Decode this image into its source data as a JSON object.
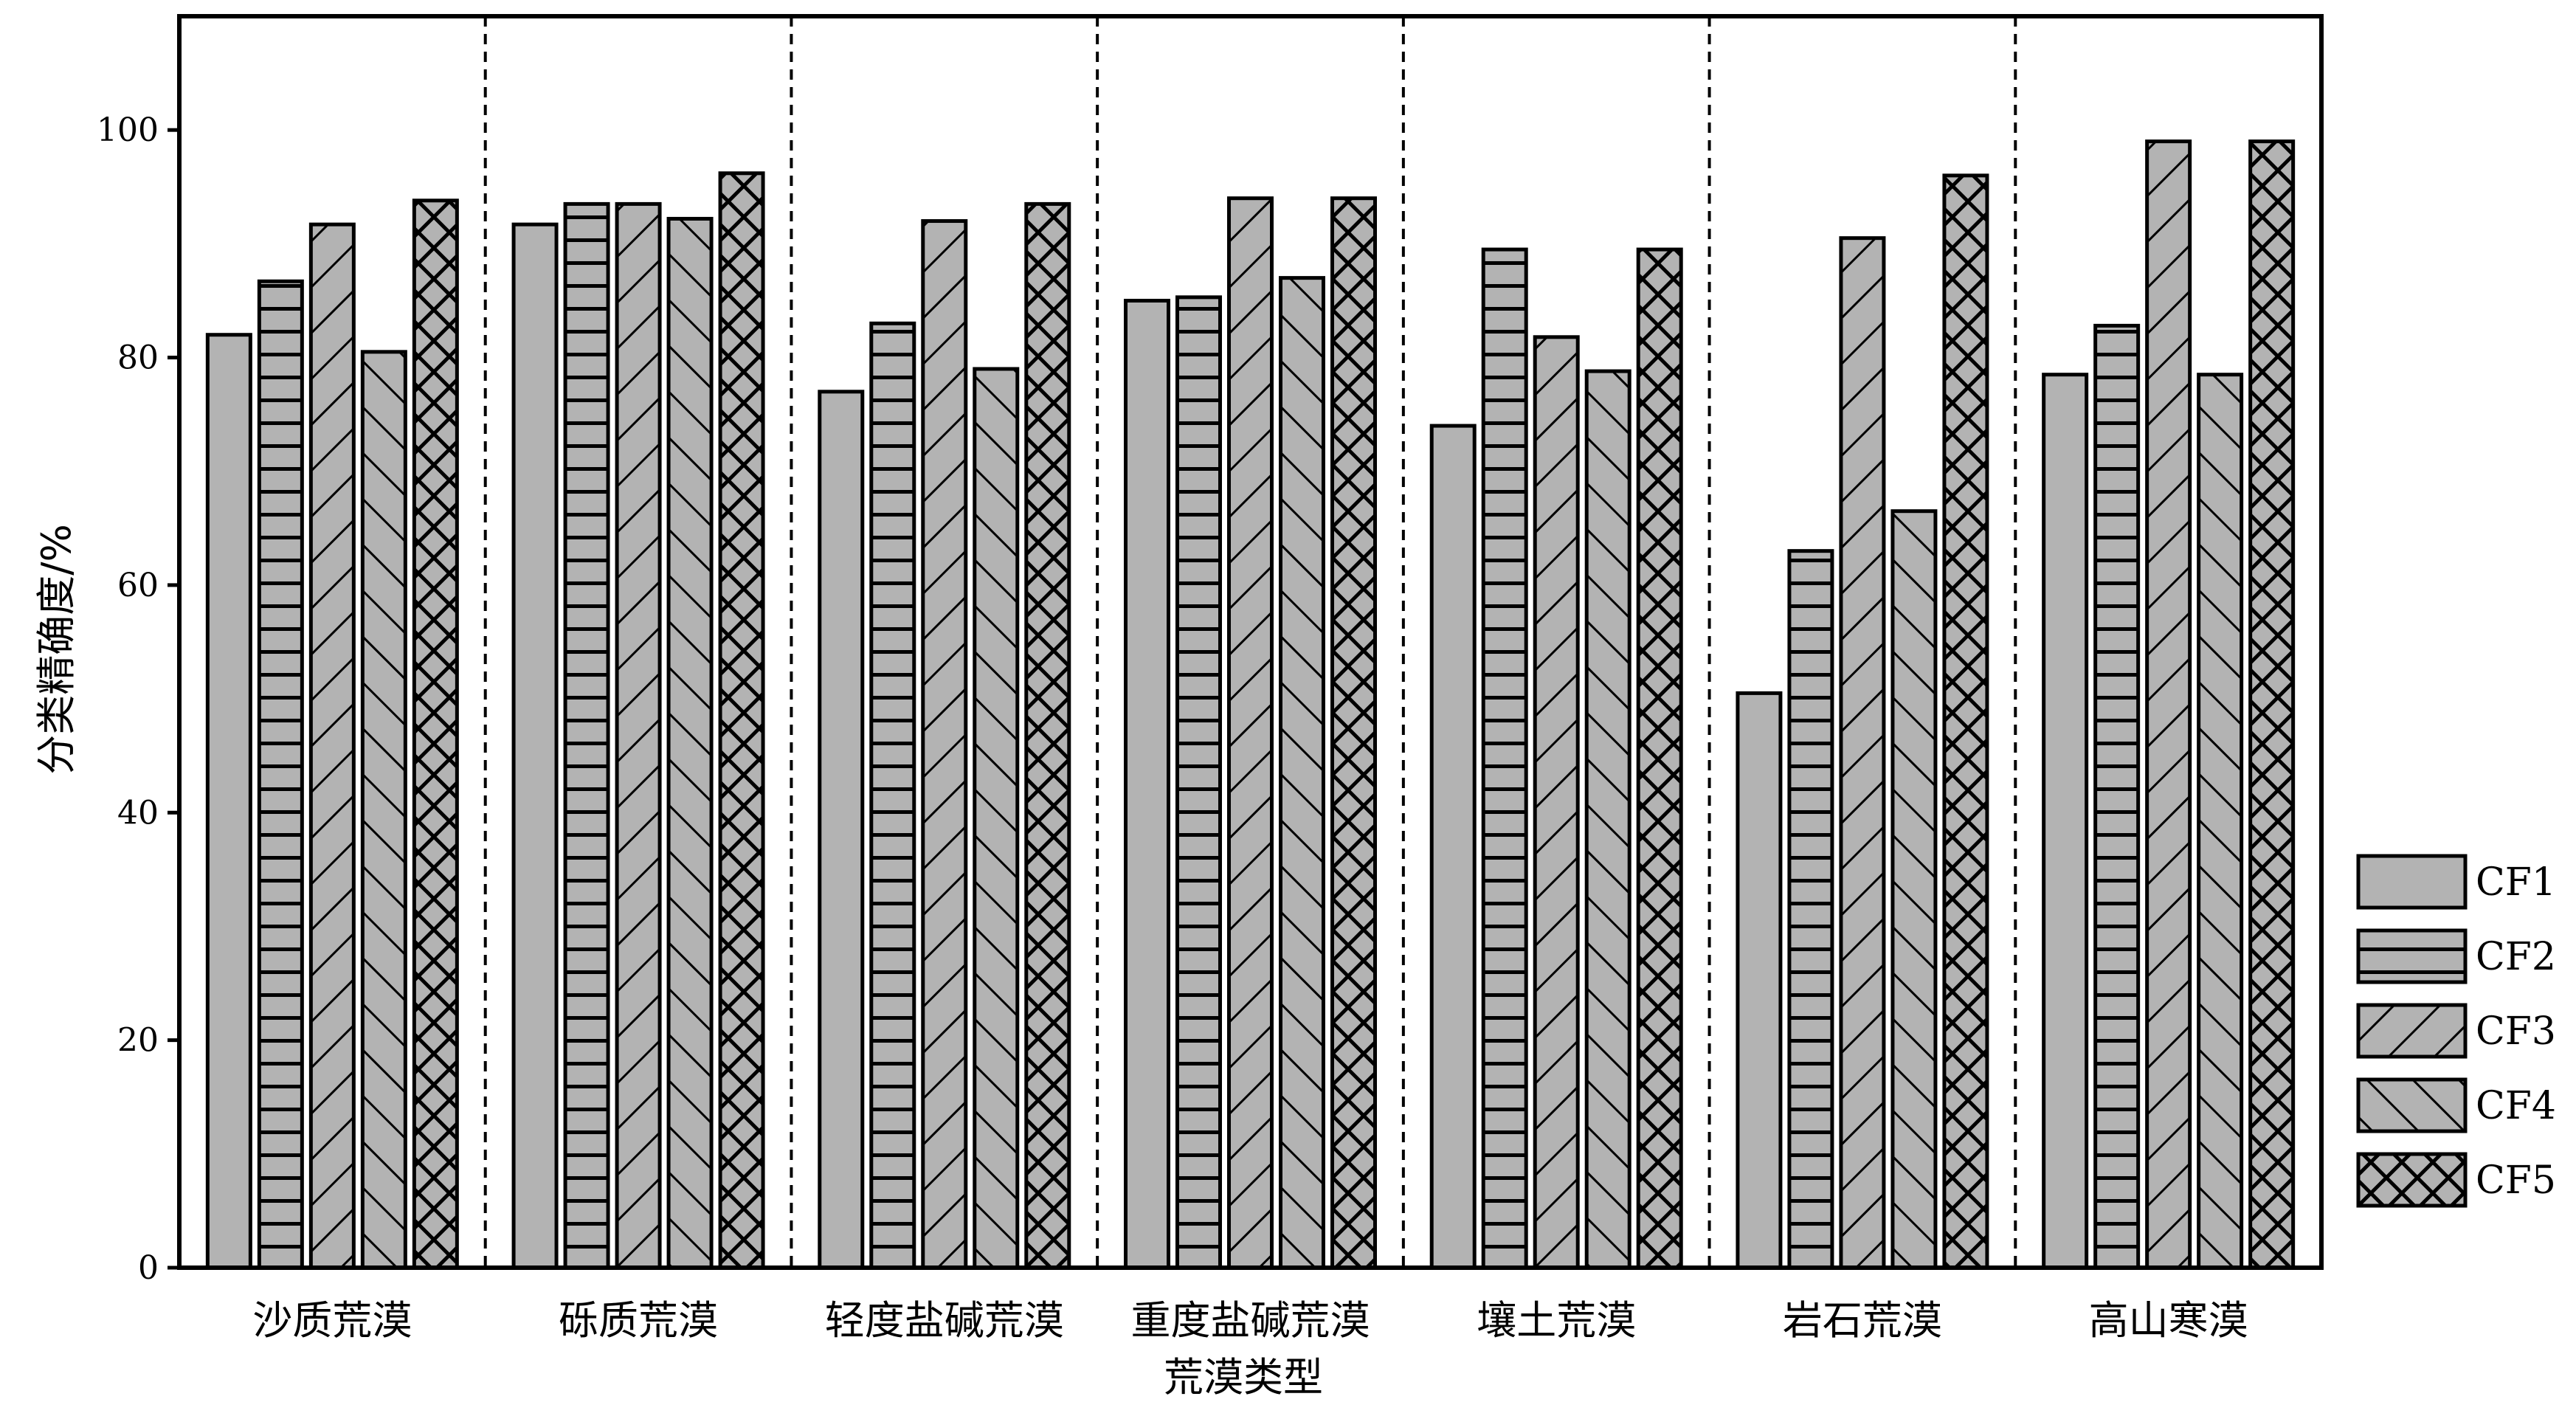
{
  "chart_data": {
    "type": "bar",
    "xlabel": "荒漠类型",
    "ylabel": "分类精确度/%",
    "ylim": [
      0,
      110
    ],
    "yticks": [
      0,
      20,
      40,
      60,
      80,
      100
    ],
    "categories": [
      "沙质荒漠",
      "砾质荒漠",
      "轻度盐碱荒漠",
      "重度盐碱荒漠",
      "壤土荒漠",
      "岩石荒漠",
      "高山寒漠"
    ],
    "series": [
      {
        "name": "CF1",
        "pattern": "solid",
        "values": [
          82,
          91.7,
          77,
          85,
          74,
          50.5,
          78.5
        ]
      },
      {
        "name": "CF2",
        "pattern": "horizontal",
        "values": [
          86.7,
          93.5,
          83,
          85.3,
          89.5,
          63,
          82.8
        ]
      },
      {
        "name": "CF3",
        "pattern": "forward-diagonal",
        "values": [
          91.7,
          93.5,
          92,
          94,
          81.8,
          90.5,
          99
        ]
      },
      {
        "name": "CF4",
        "pattern": "backward-diagonal",
        "values": [
          80.5,
          92.2,
          79,
          87,
          78.8,
          66.5,
          78.5
        ]
      },
      {
        "name": "CF5",
        "pattern": "cross-hatch",
        "values": [
          93.8,
          96.2,
          93.5,
          94,
          89.5,
          96,
          99
        ]
      }
    ],
    "legend_position": "right-bottom",
    "group_separators": "dashed vertical lines",
    "colors": {
      "bar_fill": "#b3b3b3",
      "bar_stroke": "#000000",
      "hatch": "#000000"
    }
  }
}
